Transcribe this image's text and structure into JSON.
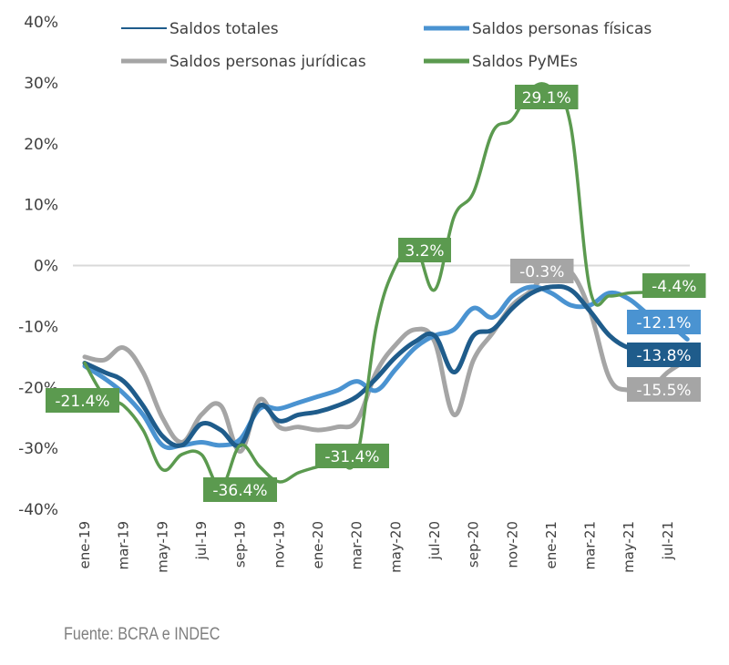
{
  "chart_data": {
    "type": "line",
    "title": "",
    "xlabel": "",
    "ylabel": "",
    "ylim": [
      -0.4,
      0.4
    ],
    "yticks": [
      0.4,
      0.3,
      0.2,
      0.1,
      0.0,
      -0.1,
      -0.2,
      -0.3,
      -0.4
    ],
    "ytick_labels": [
      "40%",
      "30%",
      "20%",
      "10%",
      "0%",
      "-10%",
      "-20%",
      "-30%",
      "-40%"
    ],
    "grid": "zero-line only",
    "x": [
      "ene-19",
      "feb-19",
      "mar-19",
      "abr-19",
      "may-19",
      "jun-19",
      "jul-19",
      "ago-19",
      "sep-19",
      "oct-19",
      "nov-19",
      "dic-19",
      "ene-20",
      "feb-20",
      "mar-20",
      "abr-20",
      "may-20",
      "jun-20",
      "jul-20",
      "ago-20",
      "sep-20",
      "oct-20",
      "nov-20",
      "dic-20",
      "ene-21",
      "feb-21",
      "mar-21",
      "abr-21",
      "may-21",
      "jun-21",
      "jul-21",
      "ago-21"
    ],
    "xtick_labels": [
      "ene-19",
      "mar-19",
      "may-19",
      "jul-19",
      "sep-19",
      "nov-19",
      "ene-20",
      "mar-20",
      "may-20",
      "jul-20",
      "sep-20",
      "nov-20",
      "ene-21",
      "mar-21",
      "may-21",
      "jul-21"
    ],
    "legend_position": "top",
    "series": [
      {
        "name": "Saldos totales",
        "color": "#1f5c8b",
        "values": [
          -0.16,
          -0.175,
          -0.19,
          -0.23,
          -0.28,
          -0.295,
          -0.26,
          -0.27,
          -0.295,
          -0.23,
          -0.255,
          -0.245,
          -0.24,
          -0.23,
          -0.215,
          -0.185,
          -0.15,
          -0.125,
          -0.115,
          -0.175,
          -0.115,
          -0.105,
          -0.07,
          -0.045,
          -0.035,
          -0.04,
          -0.075,
          -0.115,
          -0.135,
          -0.135,
          -0.138,
          -0.138
        ],
        "labels": [
          {
            "index": 31,
            "text": "-13.8%"
          }
        ]
      },
      {
        "name": "Saldos personas físicas",
        "color": "#4a93d1",
        "values": [
          -0.165,
          -0.185,
          -0.21,
          -0.245,
          -0.295,
          -0.295,
          -0.29,
          -0.295,
          -0.285,
          -0.235,
          -0.235,
          -0.225,
          -0.215,
          -0.205,
          -0.19,
          -0.205,
          -0.17,
          -0.135,
          -0.115,
          -0.105,
          -0.07,
          -0.085,
          -0.05,
          -0.035,
          -0.045,
          -0.065,
          -0.065,
          -0.045,
          -0.055,
          -0.08,
          -0.095,
          -0.121
        ],
        "labels": [
          {
            "index": 31,
            "text": "-12.1%"
          }
        ]
      },
      {
        "name": "Saldos personas jurídicas",
        "color": "#a5a5a5",
        "values": [
          -0.15,
          -0.155,
          -0.135,
          -0.175,
          -0.25,
          -0.29,
          -0.245,
          -0.23,
          -0.305,
          -0.22,
          -0.265,
          -0.265,
          -0.27,
          -0.265,
          -0.255,
          -0.175,
          -0.13,
          -0.105,
          -0.125,
          -0.245,
          -0.155,
          -0.11,
          -0.065,
          -0.04,
          -0.003,
          -0.01,
          -0.075,
          -0.185,
          -0.205,
          -0.205,
          -0.175,
          -0.155
        ],
        "labels": [
          {
            "index": 24,
            "text": "-0.3%"
          },
          {
            "index": 31,
            "text": "-15.5%"
          }
        ]
      },
      {
        "name": "Saldos PyMEs",
        "color": "#5b9a4f",
        "values": [
          -0.16,
          -0.214,
          -0.23,
          -0.27,
          -0.335,
          -0.31,
          -0.31,
          -0.364,
          -0.295,
          -0.33,
          -0.355,
          -0.34,
          -0.33,
          -0.32,
          -0.314,
          -0.1,
          0.0,
          0.032,
          -0.04,
          0.08,
          0.12,
          0.22,
          0.24,
          0.291,
          0.291,
          0.23,
          -0.04,
          -0.05,
          -0.045,
          -0.044,
          -0.044,
          -0.044
        ],
        "labels": [
          {
            "index": 1,
            "text": "-21.4%"
          },
          {
            "index": 7,
            "text": "-36.4%"
          },
          {
            "index": 14,
            "text": "-31.4%"
          },
          {
            "index": 17,
            "text": "3.2%"
          },
          {
            "index": 24,
            "text": "29.1%"
          },
          {
            "index": 30,
            "text": "-4.4%"
          }
        ]
      }
    ]
  },
  "source_note": "Fuente: BCRA e INDEC"
}
